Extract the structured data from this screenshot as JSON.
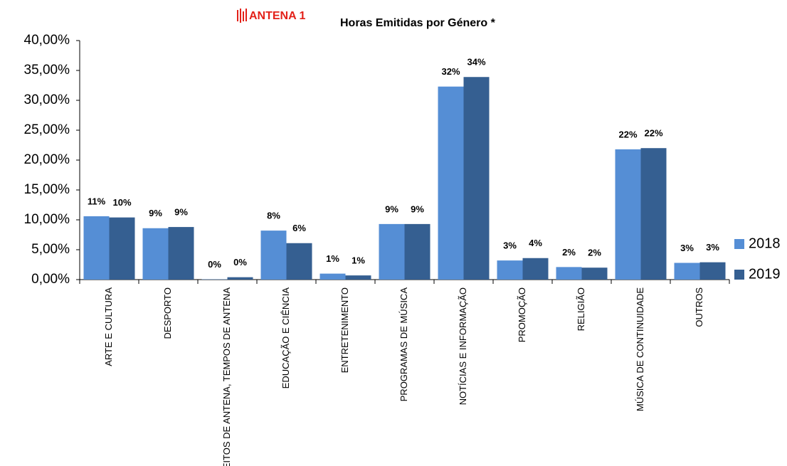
{
  "brand": "ANTENA 1",
  "chart_data": {
    "type": "bar",
    "title": "Horas Emitidas por Género *",
    "categories": [
      "ARTE E CULTURA",
      "DESPORTO",
      "DIREITOS DE ANTENA, TEMPOS DE ANTENA",
      "EDUCAÇÃO E CIÊNCIA",
      "ENTRETENIMENTO",
      "PROGRAMAS DE MÚSICA",
      "NOTÍCIAS E INFORMAÇÃO",
      "PROMOÇÃO",
      "RELIGIÃO",
      "MÚSICA DE CONTINUIDADE",
      "OUTROS"
    ],
    "series": [
      {
        "name": "2018",
        "color": "#558ed5",
        "values": [
          10.6,
          8.6,
          0.05,
          8.2,
          1.0,
          9.3,
          32.3,
          3.2,
          2.1,
          21.8,
          2.8
        ],
        "value_labels": [
          "11%",
          "9%",
          "0%",
          "8%",
          "1%",
          "9%",
          "32%",
          "3%",
          "2%",
          "22%",
          "3%"
        ]
      },
      {
        "name": "2019",
        "color": "#355f91",
        "values": [
          10.4,
          8.8,
          0.4,
          6.1,
          0.7,
          9.3,
          33.9,
          3.6,
          2.0,
          22.0,
          2.9
        ],
        "value_labels": [
          "10%",
          "9%",
          "0%",
          "6%",
          "1%",
          "9%",
          "34%",
          "4%",
          "2%",
          "22%",
          "3%"
        ]
      }
    ],
    "ylim": [
      0,
      40
    ],
    "yticks": [
      {
        "value": 0,
        "label": "0,00%"
      },
      {
        "value": 5,
        "label": "5,00%"
      },
      {
        "value": 10,
        "label": "10,00%"
      },
      {
        "value": 15,
        "label": "15,00%"
      },
      {
        "value": 20,
        "label": "20,00%"
      },
      {
        "value": 25,
        "label": "25,00%"
      },
      {
        "value": 30,
        "label": "30,00%"
      },
      {
        "value": 35,
        "label": "35,00%"
      },
      {
        "value": 40,
        "label": "40,00%"
      }
    ],
    "grid": false,
    "legend": "right"
  }
}
